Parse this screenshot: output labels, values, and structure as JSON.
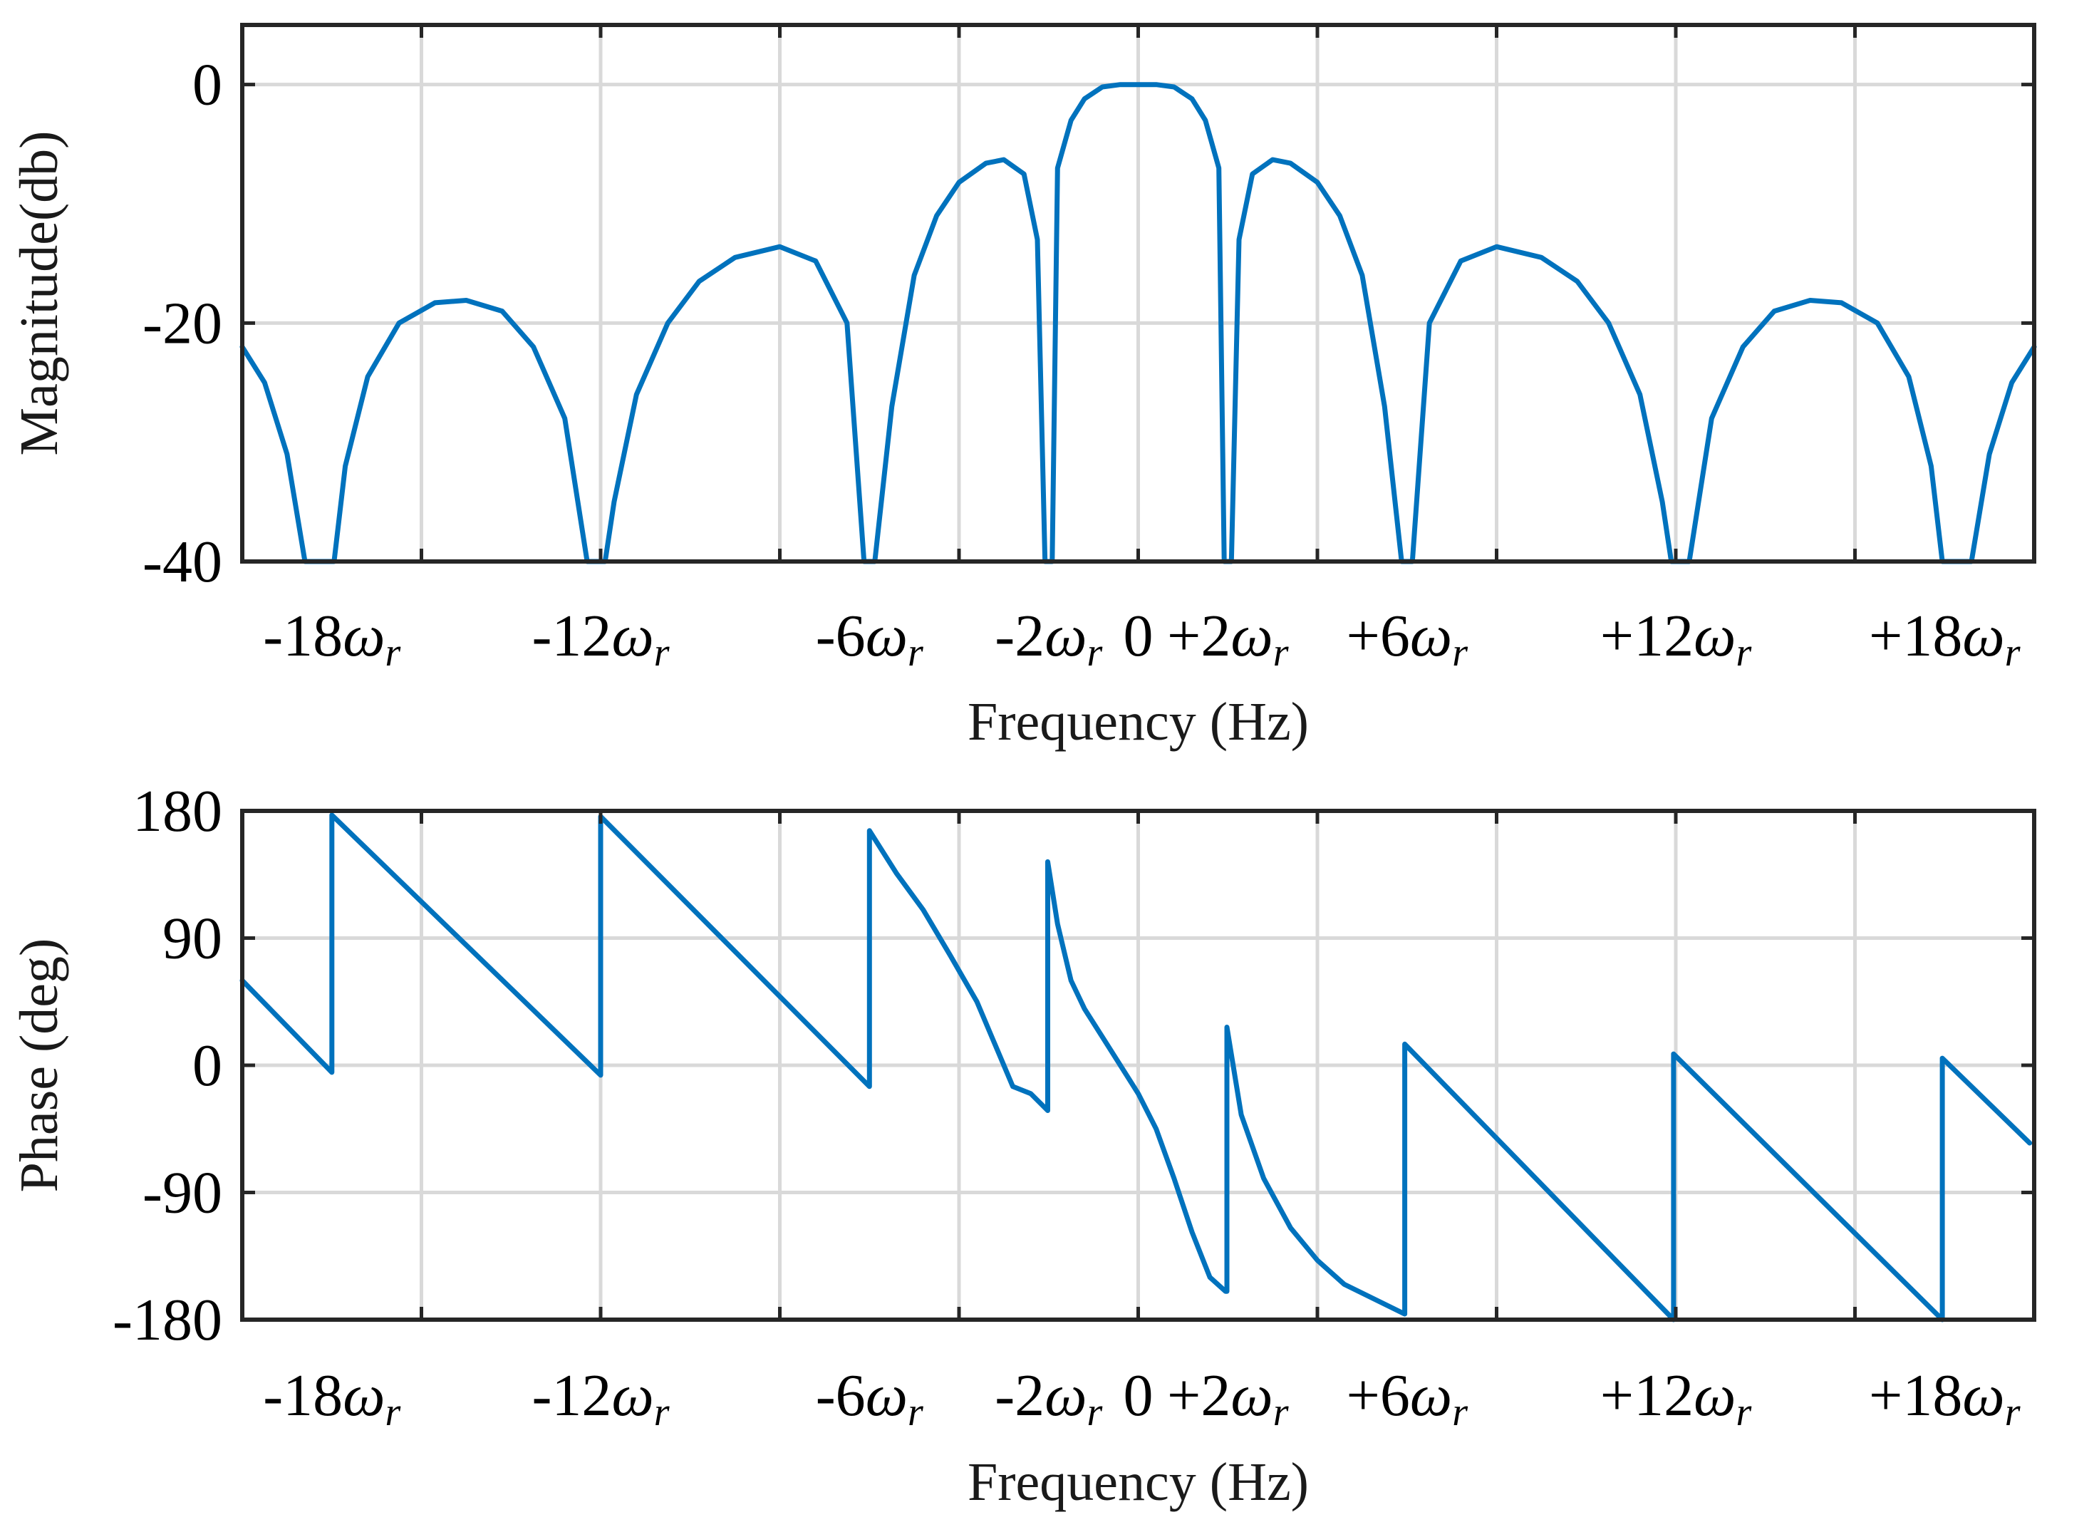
{
  "chart_data": [
    {
      "type": "line",
      "id": "magnitude",
      "title": "",
      "xlabel": "Frequency (Hz)",
      "ylabel": "Magnitude(db)",
      "grid": true,
      "xlim": [
        -20,
        20
      ],
      "ylim": [
        -40,
        5
      ],
      "yticks": [
        {
          "value": 0,
          "label": "0"
        },
        {
          "value": -20,
          "label": "-20"
        },
        {
          "value": -40,
          "label": "-40"
        }
      ],
      "xticks": [
        {
          "value": -18,
          "num": "-18",
          "sym": "ω",
          "sub": "r"
        },
        {
          "value": -12,
          "num": "-12",
          "sym": "ω",
          "sub": "r"
        },
        {
          "value": -6,
          "num": "-6",
          "sym": "ω",
          "sub": "r"
        },
        {
          "value": -2,
          "num": "-2",
          "sym": "ω",
          "sub": "r"
        },
        {
          "value": 0,
          "num": "0",
          "sym": "",
          "sub": ""
        },
        {
          "value": 2,
          "num": "+2",
          "sym": "ω",
          "sub": "r"
        },
        {
          "value": 6,
          "num": "+6",
          "sym": "ω",
          "sub": "r"
        },
        {
          "value": 12,
          "num": "+12",
          "sym": "ω",
          "sub": "r"
        },
        {
          "value": 18,
          "num": "+18",
          "sym": "ω",
          "sub": "r"
        }
      ],
      "series": [
        {
          "name": "Magnitude",
          "color": "#0072bd",
          "x": [
            -20,
            -19.5,
            -19,
            -18.6,
            -18.3,
            -17.95,
            -17.7,
            -17.2,
            -16.5,
            -15.7,
            -15,
            -14.2,
            -13.5,
            -12.8,
            -12.3,
            -12.05,
            -11.9,
            -11.7,
            -11.2,
            -10.5,
            -9.8,
            -9,
            -8,
            -7.2,
            -6.5,
            -6.12,
            -6.0,
            -5.88,
            -5.5,
            -5,
            -4.5,
            -4,
            -3.4,
            -3,
            -2.55,
            -2.25,
            -2.08,
            -2.0,
            -1.92,
            -1.8,
            -1.5,
            -1.2,
            -0.8,
            -0.4,
            0,
            0.4,
            0.8,
            1.2,
            1.5,
            1.8,
            1.92,
            2.0,
            2.08,
            2.25,
            2.55,
            3,
            3.4,
            4,
            4.5,
            5,
            5.5,
            5.88,
            6.0,
            6.12,
            6.5,
            7.2,
            8,
            9,
            9.8,
            10.5,
            11.2,
            11.7,
            11.9,
            12.05,
            12.3,
            12.8,
            13.5,
            14.2,
            15,
            15.7,
            16.5,
            17.2,
            17.7,
            17.95,
            18.3,
            18.6,
            19,
            19.5,
            20
          ],
          "y": [
            -22,
            -25,
            -31,
            -40,
            -40,
            -40,
            -32,
            -24.5,
            -20,
            -18.3,
            -18.1,
            -19,
            -22,
            -28,
            -40,
            -40,
            -40,
            -35,
            -26,
            -20,
            -16.5,
            -14.5,
            -13.6,
            -14.8,
            -20,
            -40,
            -40,
            -40,
            -27,
            -16,
            -11,
            -8.2,
            -6.6,
            -6.3,
            -7.5,
            -13,
            -40,
            -40,
            -40,
            -7,
            -3,
            -1.2,
            -0.2,
            0,
            0,
            0,
            -0.2,
            -1.2,
            -3,
            -7,
            -40,
            -40,
            -40,
            -13,
            -7.5,
            -6.3,
            -6.6,
            -8.2,
            -11,
            -16,
            -27,
            -40,
            -40,
            -40,
            -20,
            -14.8,
            -13.6,
            -14.5,
            -16.5,
            -20,
            -26,
            -35,
            -40,
            -40,
            -40,
            -28,
            -22,
            -19,
            -18.1,
            -18.3,
            -20,
            -24.5,
            -32,
            -40,
            -40,
            -40,
            -31,
            -25,
            -22
          ]
        }
      ]
    },
    {
      "type": "line",
      "id": "phase",
      "title": "",
      "xlabel": "Frequency (Hz)",
      "ylabel": "Phase (deg)",
      "grid": true,
      "xlim": [
        -20,
        20
      ],
      "ylim": [
        -180,
        180
      ],
      "yticks": [
        {
          "value": 180,
          "label": "180"
        },
        {
          "value": 90,
          "label": "90"
        },
        {
          "value": 0,
          "label": "0"
        },
        {
          "value": -90,
          "label": "-90"
        },
        {
          "value": -180,
          "label": "-180"
        }
      ],
      "xticks": [
        {
          "value": -18,
          "num": "-18",
          "sym": "ω",
          "sub": "r"
        },
        {
          "value": -12,
          "num": "-12",
          "sym": "ω",
          "sub": "r"
        },
        {
          "value": -6,
          "num": "-6",
          "sym": "ω",
          "sub": "r"
        },
        {
          "value": -2,
          "num": "-2",
          "sym": "ω",
          "sub": "r"
        },
        {
          "value": 0,
          "num": "0",
          "sym": "",
          "sub": ""
        },
        {
          "value": 2,
          "num": "+2",
          "sym": "ω",
          "sub": "r"
        },
        {
          "value": 6,
          "num": "+6",
          "sym": "ω",
          "sub": "r"
        },
        {
          "value": 12,
          "num": "+12",
          "sym": "ω",
          "sub": "r"
        },
        {
          "value": 18,
          "num": "+18",
          "sym": "ω",
          "sub": "r"
        }
      ],
      "series": [
        {
          "name": "Phase",
          "color": "#0072bd",
          "x": [
            -20,
            -18,
            -18,
            -12,
            -12,
            -6,
            -6,
            -5.4,
            -4.8,
            -4.2,
            -3.6,
            -3.2,
            -2.8,
            -2.4,
            -2.02,
            -2.02,
            -1.8,
            -1.5,
            -1.2,
            -0.8,
            -0.4,
            0,
            0.4,
            0.8,
            1.2,
            1.6,
            1.95,
            1.98,
            1.98,
            2.3,
            2.8,
            3.4,
            4,
            4.6,
            5.95,
            5.95,
            11.95,
            11.95,
            17.95,
            17.95,
            19.9
          ],
          "y": [
            60,
            -5,
            177,
            -7,
            176,
            -15,
            166,
            136,
            110,
            78,
            45,
            15,
            -15,
            -20,
            -32,
            144,
            100,
            60,
            40,
            20,
            0,
            -20,
            -45,
            -80,
            -118,
            -150,
            -160,
            -160,
            27,
            -35,
            -80,
            -115,
            -138,
            -155,
            -176,
            15,
            -180,
            8,
            -180,
            5,
            -55
          ]
        }
      ]
    }
  ]
}
